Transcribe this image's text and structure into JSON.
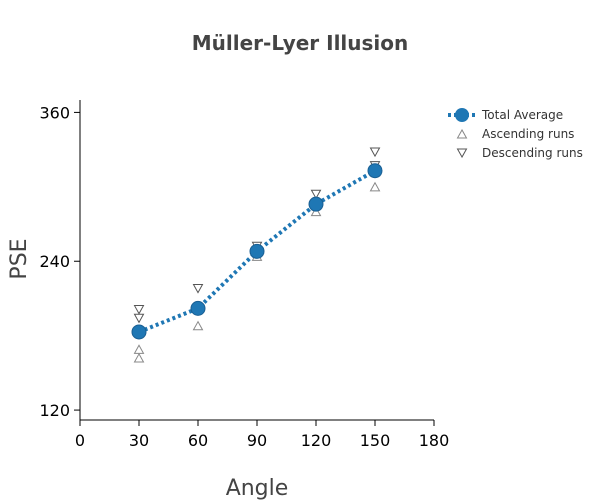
{
  "chart_data": {
    "type": "scatter",
    "title": "Müller-Lyer Illusion",
    "xlabel": "Angle",
    "ylabel": "PSE",
    "xlim": [
      0,
      180
    ],
    "ylim": [
      112,
      370
    ],
    "xticks": [
      "0",
      "30",
      "60",
      "90",
      "120",
      "150",
      "180"
    ],
    "yticks": [
      "120",
      "240",
      "360"
    ],
    "grid": false,
    "legend_position": "top-right",
    "series": [
      {
        "name": "Total Average",
        "style": "line-dotted-with-markers",
        "color": "#1f77b4",
        "x": [
          30,
          60,
          90,
          120,
          150
        ],
        "y": [
          183,
          202,
          248,
          286,
          313
        ]
      },
      {
        "name": "Ascending runs",
        "style": "triangle-up",
        "color": "#888888",
        "x": [
          30,
          30,
          60,
          90,
          90,
          120,
          150,
          150
        ],
        "y": [
          162,
          169,
          188,
          244,
          249,
          280,
          300,
          312
        ],
        "_note": "approximate"
      },
      {
        "name": "Descending runs",
        "style": "triangle-down",
        "color": "#555555",
        "x": [
          30,
          30,
          60,
          90,
          120,
          150,
          150
        ],
        "y": [
          194,
          201,
          218,
          252,
          294,
          317,
          328
        ]
      }
    ]
  }
}
